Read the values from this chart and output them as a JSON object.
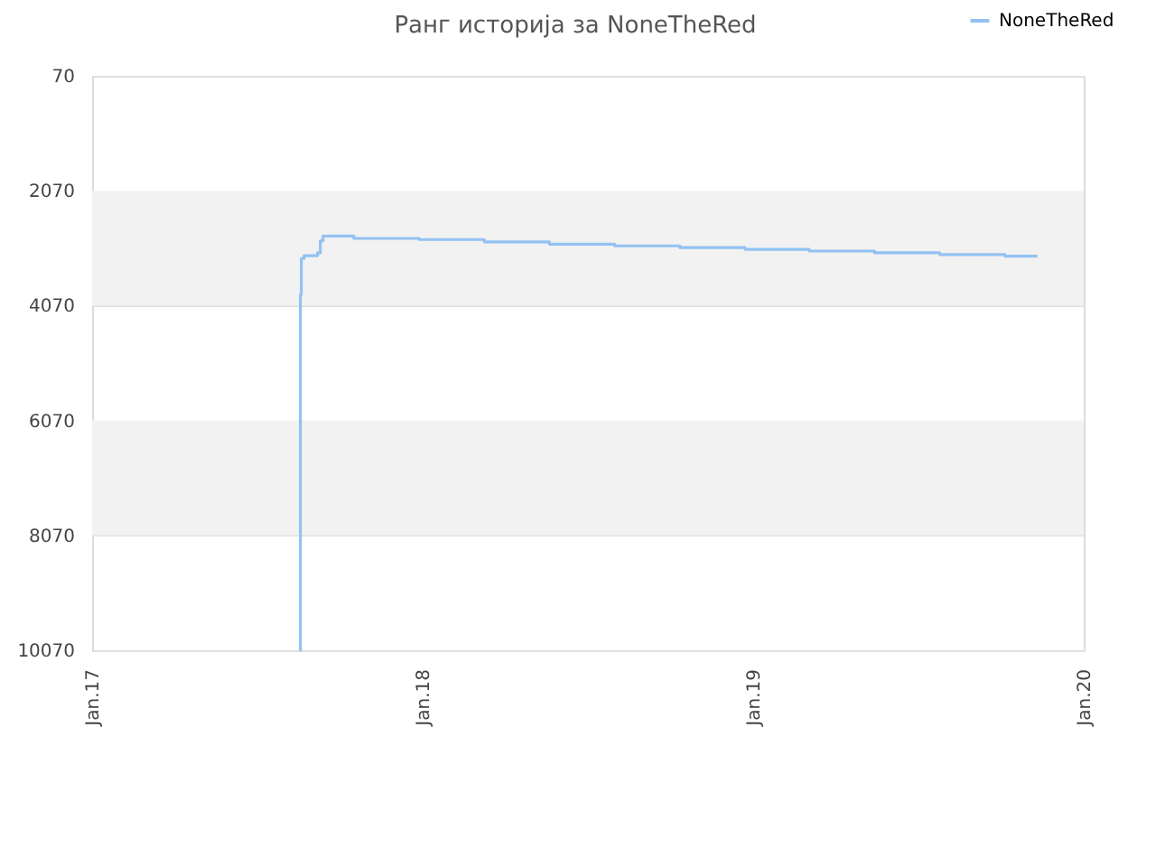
{
  "chart_data": {
    "type": "step",
    "title": "Ранг историја за NoneTheRed",
    "x": [
      "2017-08-18",
      "2017-08-19",
      "2017-08-20",
      "2017-08-23",
      "2017-09-07",
      "2017-09-10",
      "2017-09-13",
      "2017-10-17",
      "2017-12-28",
      "2018-03-10",
      "2018-05-21",
      "2018-08-01",
      "2018-10-12",
      "2018-12-23",
      "2019-03-04",
      "2019-05-15",
      "2019-07-26",
      "2019-10-06",
      "2019-11-11"
    ],
    "series": [
      {
        "name": "NoneTheRed",
        "color": "#92c2f2",
        "values": [
          10070,
          3880,
          3250,
          3200,
          3150,
          2940,
          2860,
          2900,
          2920,
          2960,
          3000,
          3030,
          3060,
          3090,
          3120,
          3150,
          3180,
          3210,
          3210
        ]
      }
    ],
    "xlim": [
      "2017-01",
      "2020-01"
    ],
    "xticks": [
      {
        "value": "2017-01",
        "label": "Jan.17"
      },
      {
        "value": "2018-01",
        "label": "Jan.18"
      },
      {
        "value": "2019-01",
        "label": "Jan.19"
      },
      {
        "value": "2020-01",
        "label": "Jan.20"
      }
    ],
    "ylim": [
      10070,
      70
    ],
    "yticks": [
      70,
      2070,
      4070,
      6070,
      8070,
      10070
    ],
    "grid": "y",
    "legend": "top right",
    "bands": [
      {
        "axis": "y",
        "from": 2070,
        "to": 4070,
        "color": "#f2f2f2"
      },
      {
        "axis": "y",
        "from": 6070,
        "to": 8070,
        "color": "#f2f2f2"
      }
    ]
  }
}
